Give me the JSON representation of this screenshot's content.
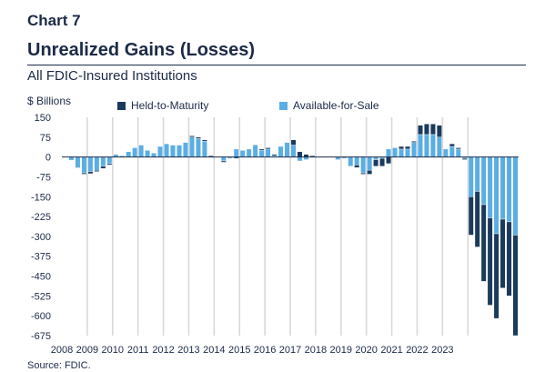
{
  "header": {
    "chart_label": "Chart 7",
    "title": "Unrealized Gains (Losses)",
    "subtitle": "All FDIC-Insured Institutions",
    "source": "Source: FDIC."
  },
  "colors": {
    "htm": "#1b3a5c",
    "afs": "#5aaee3",
    "separator": "#d9d9d9",
    "zero_line": "#1b2a47"
  },
  "chart_data": {
    "type": "bar",
    "stacked": true,
    "ylabel": "$ Billions",
    "ylim": [
      -675,
      150
    ],
    "yticks": [
      150,
      75,
      0,
      -75,
      -150,
      -225,
      -300,
      -375,
      -450,
      -525,
      -600,
      -675
    ],
    "year_ticks": [
      "2008",
      "2009",
      "2010",
      "2011",
      "2012",
      "2013",
      "2014",
      "2015",
      "2016",
      "2017",
      "2018",
      "2019",
      "2020",
      "2021",
      "2022",
      "2023"
    ],
    "legend_placement": "top",
    "quarters_per_year": 4,
    "series": [
      {
        "name": "Held-to-Maturity",
        "key": "htm",
        "values": [
          0,
          0,
          -2,
          -5,
          -8,
          -5,
          -8,
          -5,
          0,
          0,
          0,
          0,
          0,
          0,
          0,
          0,
          0,
          0,
          0,
          0,
          5,
          5,
          5,
          5,
          0,
          -5,
          0,
          -5,
          0,
          0,
          2,
          5,
          5,
          5,
          0,
          0,
          20,
          20,
          10,
          5,
          0,
          -2,
          0,
          0,
          0,
          0,
          -10,
          -5,
          -15,
          -25,
          -30,
          -25,
          0,
          10,
          10,
          5,
          35,
          40,
          40,
          45,
          0,
          10,
          5,
          -5,
          -145,
          -210,
          -290,
          -330,
          -320,
          -260,
          -280,
          -380
        ]
      },
      {
        "name": "Available-for-Sale",
        "key": "afs",
        "values": [
          0,
          -12,
          -40,
          -60,
          -55,
          -50,
          -35,
          -25,
          10,
          5,
          20,
          35,
          45,
          25,
          15,
          40,
          50,
          45,
          45,
          55,
          75,
          70,
          60,
          0,
          0,
          -15,
          -5,
          30,
          25,
          30,
          45,
          25,
          30,
          5,
          40,
          55,
          45,
          -15,
          -10,
          0,
          0,
          0,
          0,
          -10,
          -5,
          -35,
          -30,
          -60,
          -50,
          -10,
          -5,
          30,
          35,
          30,
          30,
          55,
          85,
          85,
          85,
          75,
          30,
          40,
          30,
          -5,
          -150,
          -130,
          -180,
          -230,
          -290,
          -235,
          -245,
          -295
        ]
      }
    ]
  }
}
